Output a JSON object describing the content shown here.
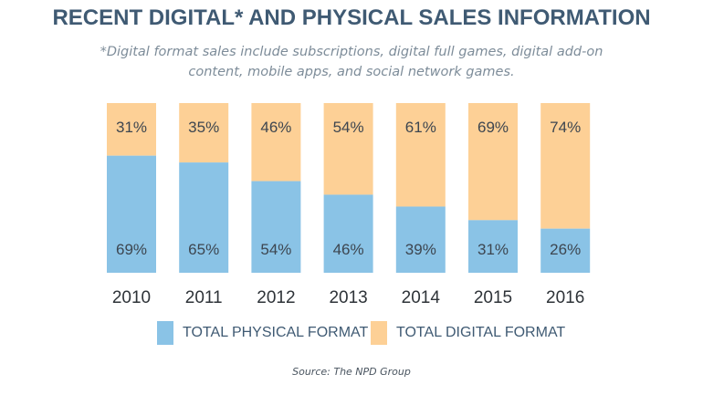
{
  "colors": {
    "physical": "#8ac3e6",
    "digital": "#fdd096"
  },
  "chart_data": {
    "type": "bar",
    "stacked": true,
    "title": "RECENT DIGITAL* AND PHYSICAL SALES INFORMATION",
    "subtitle": "*Digital format sales include subscriptions, digital full games, digital add-on content, mobile apps, and social network games.",
    "categories": [
      "2010",
      "2011",
      "2012",
      "2013",
      "2014",
      "2015",
      "2016"
    ],
    "series": [
      {
        "name": "TOTAL PHYSICAL FORMAT",
        "values": [
          69,
          65,
          54,
          46,
          39,
          31,
          26
        ],
        "labels": [
          "69%",
          "65%",
          "54%",
          "46%",
          "39%",
          "31%",
          "26%"
        ]
      },
      {
        "name": "TOTAL DIGITAL FORMAT",
        "values": [
          31,
          35,
          46,
          54,
          61,
          69,
          74
        ],
        "labels": [
          "31%",
          "35%",
          "46%",
          "54%",
          "61%",
          "69%",
          "74%"
        ]
      }
    ],
    "ylim": [
      0,
      100
    ],
    "legend": "bottom-center",
    "source": "Source: The NPD Group"
  }
}
